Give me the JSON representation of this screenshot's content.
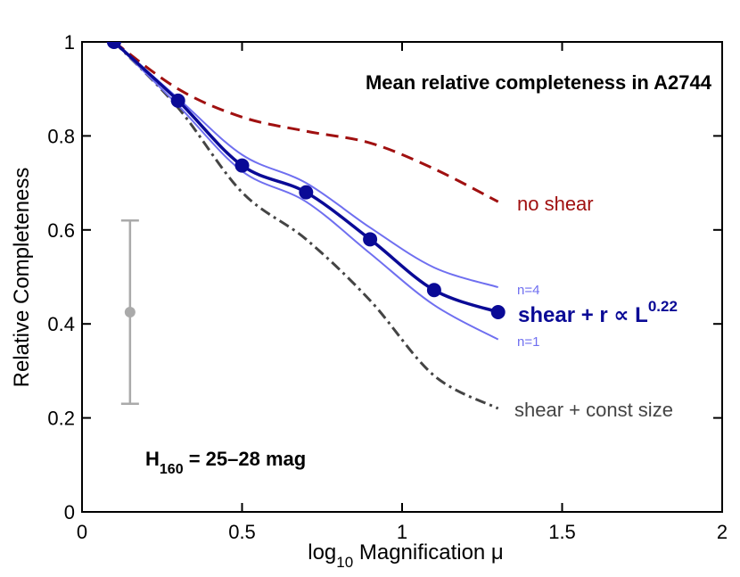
{
  "chart_data": {
    "type": "line",
    "title": "Mean relative completeness in A2744",
    "xlabel_main": "log",
    "xlabel_sub": "10",
    "xlabel_rest": " Magnification μ",
    "ylabel": "Relative Completeness",
    "xlim": [
      0,
      2
    ],
    "ylim": [
      0,
      1
    ],
    "xticks": [
      0,
      0.5,
      1,
      1.5,
      2
    ],
    "xtick_labels": [
      "0",
      "0.5",
      "1",
      "1.5",
      "2"
    ],
    "yticks": [
      0,
      0.2,
      0.4,
      0.6,
      0.8,
      1
    ],
    "ytick_labels": [
      "0",
      "0.2",
      "0.4",
      "0.6",
      "0.8",
      "1"
    ],
    "grid": false,
    "series": [
      {
        "name": "no shear",
        "color": "#a01010",
        "style": "dashed",
        "x": [
          0.1,
          0.3,
          0.5,
          0.7,
          0.9,
          1.1,
          1.3
        ],
        "y": [
          1.0,
          0.9,
          0.84,
          0.81,
          0.785,
          0.73,
          0.66
        ]
      },
      {
        "name": "shear + const size",
        "color": "#444444",
        "style": "dashdot",
        "x": [
          0.1,
          0.3,
          0.5,
          0.7,
          0.9,
          1.1,
          1.3
        ],
        "y": [
          1.0,
          0.86,
          0.68,
          0.58,
          0.45,
          0.29,
          0.22
        ]
      },
      {
        "name": "n=4",
        "color": "#6f6ff0",
        "style": "thin",
        "x": [
          0.1,
          0.3,
          0.5,
          0.7,
          0.9,
          1.1,
          1.3
        ],
        "y": [
          1.0,
          0.88,
          0.76,
          0.7,
          0.605,
          0.52,
          0.478
        ]
      },
      {
        "name": "n=1",
        "color": "#6f6ff0",
        "style": "thin",
        "x": [
          0.1,
          0.3,
          0.5,
          0.7,
          0.9,
          1.1,
          1.3
        ],
        "y": [
          1.0,
          0.865,
          0.725,
          0.66,
          0.55,
          0.44,
          0.367
        ]
      },
      {
        "name": "shear + r ∝ L",
        "exponent": "0.22",
        "color": "#0a0a96",
        "style": "solid-markers",
        "x": [
          0.1,
          0.3,
          0.5,
          0.7,
          0.9,
          1.1,
          1.3
        ],
        "y": [
          1.0,
          0.875,
          0.737,
          0.68,
          0.58,
          0.472,
          0.425
        ]
      }
    ],
    "error_bar": {
      "x": 0.15,
      "y": 0.425,
      "ymin": 0.23,
      "ymax": 0.62,
      "color": "#aaaaaa"
    },
    "annotations": {
      "mag_prefix": "H",
      "mag_sub": "160",
      "mag_rest": " = 25–28 mag"
    }
  }
}
